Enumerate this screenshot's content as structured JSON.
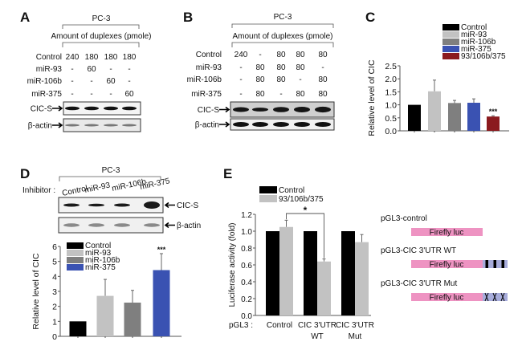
{
  "panelA": {
    "label": "A",
    "cell_line": "PC-3",
    "amount_label": "Amount of duplexes (pmole)",
    "rows": [
      {
        "name": "Control",
        "values": [
          "240",
          "180",
          "180",
          "180"
        ]
      },
      {
        "name": "miR-93",
        "values": [
          "-",
          "60",
          "-",
          "-"
        ]
      },
      {
        "name": "miR-106b",
        "values": [
          "-",
          "-",
          "60",
          "-"
        ]
      },
      {
        "name": "miR-375",
        "values": [
          "-",
          "-",
          "-",
          "60"
        ]
      }
    ],
    "blots": [
      "CIC-S",
      "β-actin"
    ]
  },
  "panelB": {
    "label": "B",
    "cell_line": "PC-3",
    "amount_label": "Amount of duplexes (pmole)",
    "rows": [
      {
        "name": "Control",
        "values": [
          "240",
          "-",
          "80",
          "80",
          "80"
        ]
      },
      {
        "name": "miR-93",
        "values": [
          "-",
          "80",
          "80",
          "80",
          "-"
        ]
      },
      {
        "name": "miR-106b",
        "values": [
          "-",
          "80",
          "80",
          "-",
          "80"
        ]
      },
      {
        "name": "miR-375",
        "values": [
          "-",
          "80",
          "-",
          "80",
          "80"
        ]
      }
    ],
    "blots": [
      "CIC-S",
      "β-actin"
    ]
  },
  "panelD": {
    "label": "D",
    "cell_line": "PC-3",
    "inhibitor_label": "Inhibitor :",
    "inhibitors": [
      "Control",
      "miR-93",
      "miR-106b",
      "miR-375"
    ],
    "blots": [
      "CIC-S",
      "β-actin"
    ]
  },
  "panelE": {
    "label": "E",
    "constructs": [
      {
        "name": "pGL3-control",
        "gene": "Firefly luc",
        "utr": "none"
      },
      {
        "name": "pGL3-CIC 3'UTR WT",
        "gene": "Firefly luc",
        "utr": "wild-type"
      },
      {
        "name": "pGL3-CIC 3'UTR Mut",
        "gene": "Firefly luc",
        "utr": "mutant"
      }
    ],
    "colors": {
      "gene": "#ee93c2",
      "utr": "#a7acdb"
    }
  },
  "panelC_label": "C",
  "chart_data": [
    {
      "panel": "C",
      "type": "bar",
      "categories": [
        "Control",
        "miR-93",
        "miR-106b",
        "miR-375",
        "93/106b/375"
      ],
      "values": [
        1.0,
        1.52,
        1.07,
        1.08,
        0.55
      ],
      "errors": [
        0,
        0.43,
        0.1,
        0.15,
        0.03
      ],
      "colors": [
        "#000000",
        "#c2c2c2",
        "#7f7f7f",
        "#3a52b2",
        "#8b1a1e"
      ],
      "annotations": [
        "",
        "",
        "",
        "",
        "***"
      ],
      "ylabel": "Relative level of CIC",
      "ylim": [
        0,
        2.5
      ],
      "yticks": [
        "0.0",
        "0.5",
        "1.0",
        "1.5",
        "2.0",
        "2.5"
      ],
      "legend": "top-right"
    },
    {
      "panel": "D",
      "type": "bar",
      "categories": [
        "Control",
        "miR-93",
        "miR-106b",
        "miR-375"
      ],
      "values": [
        1.0,
        2.7,
        2.25,
        4.42
      ],
      "errors": [
        0,
        1.1,
        0.82,
        1.1
      ],
      "colors": [
        "#000000",
        "#c2c2c2",
        "#7f7f7f",
        "#3a52b2"
      ],
      "annotations": [
        "",
        "",
        "",
        "***"
      ],
      "ylabel": "Relative level of CIC",
      "ylim": [
        0,
        6
      ],
      "yticks": [
        "0",
        "1",
        "2",
        "3",
        "4",
        "5",
        "6"
      ],
      "legend": "top-left"
    },
    {
      "panel": "E",
      "type": "bar",
      "xprefix": "pGL3 :",
      "categories": [
        [
          "Control"
        ],
        [
          "CIC 3'UTR",
          "WT"
        ],
        [
          "CIC 3'UTR",
          "Mut"
        ]
      ],
      "series": [
        {
          "name": "Control",
          "values": [
            1.0,
            1.0,
            1.0
          ],
          "errors": [
            0,
            0,
            0
          ],
          "color": "#000000"
        },
        {
          "name": "93/106b/375",
          "values": [
            1.05,
            0.64,
            0.87
          ],
          "errors": [
            0.08,
            0.03,
            0.09
          ],
          "color": "#c2c2c2"
        }
      ],
      "significance": {
        "between": [
          "Control",
          "CIC 3'UTR WT"
        ],
        "label": "*"
      },
      "ylabel": "Luciferase activity (fold)",
      "ylim": [
        0,
        1.2
      ],
      "yticks": [
        "0.0",
        "0.2",
        "0.4",
        "0.6",
        "0.8",
        "1.0",
        "1.2"
      ],
      "legend": "top-left"
    }
  ]
}
